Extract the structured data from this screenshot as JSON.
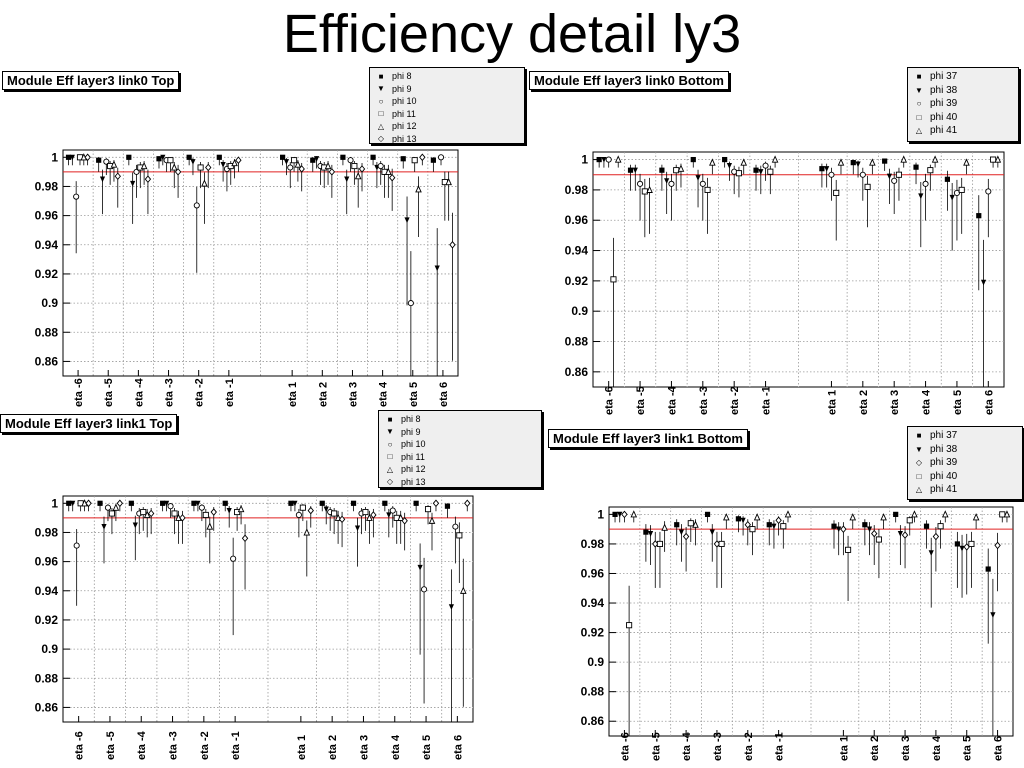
{
  "title": "Efficiency detail ly3",
  "colors": {
    "reference_line": "#e02020",
    "points": "#000000",
    "grid": "#9a9a9a",
    "legend_bg": "#efefef"
  },
  "chart_data": [
    {
      "type": "scatter",
      "title": "Module Eff layer3 link0 Top",
      "categories": [
        "eta -6",
        "eta -5",
        "eta -4",
        "eta -3",
        "eta -2",
        "eta -1",
        "eta 1",
        "eta 2",
        "eta 3",
        "eta 4",
        "eta 5",
        "eta 6"
      ],
      "ylim": [
        0.85,
        1.005
      ],
      "yticks": [
        "1",
        "0.98",
        "0.96",
        "0.94",
        "0.92",
        "0.9",
        "0.88",
        "0.86"
      ],
      "reference_line": 0.99,
      "grid": true,
      "legend_position": "top-center",
      "series": [
        {
          "name": "phi 8",
          "marker": "square-filled",
          "values": [
            1.0,
            0.998,
            1.0,
            0.999,
            1.0,
            1.0,
            1.0,
            0.998,
            1.0,
            1.0,
            0.999,
            0.998
          ]
        },
        {
          "name": "phi 9",
          "marker": "triangle-filled",
          "values": [
            1.0,
            0.985,
            0.982,
            1.0,
            0.997,
            0.995,
            0.997,
            0.999,
            0.985,
            0.993,
            0.957,
            0.924
          ]
        },
        {
          "name": "phi 10",
          "marker": "circle",
          "values": [
            0.973,
            0.997,
            0.99,
            0.998,
            0.967,
            0.992,
            0.993,
            0.994,
            0.998,
            0.994,
            0.9,
            1.0
          ]
        },
        {
          "name": "phi 11",
          "marker": "square",
          "values": [
            1.0,
            0.994,
            0.993,
            0.998,
            0.993,
            0.994,
            0.998,
            0.993,
            0.994,
            0.99,
            0.998,
            0.983
          ]
        },
        {
          "name": "phi 12",
          "marker": "triangle",
          "values": [
            1.0,
            0.995,
            0.994,
            0.993,
            0.982,
            0.996,
            0.995,
            0.994,
            0.987,
            0.99,
            0.978,
            0.983
          ]
        },
        {
          "name": "phi 13",
          "marker": "diamond",
          "values": [
            1.0,
            0.987,
            0.985,
            0.99,
            0.993,
            0.998,
            0.992,
            0.99,
            0.992,
            0.986,
            1.0,
            0.94
          ]
        }
      ]
    },
    {
      "type": "scatter",
      "title": "Module Eff layer3 link0 Bottom",
      "categories": [
        "eta -6",
        "eta -5",
        "eta -4",
        "eta -3",
        "eta -2",
        "eta -1",
        "eta 1",
        "eta 2",
        "eta 3",
        "eta 4",
        "eta 5",
        "eta 6"
      ],
      "ylim": [
        0.85,
        1.005
      ],
      "yticks": [
        "1",
        "0.98",
        "0.96",
        "0.94",
        "0.92",
        "0.9",
        "0.88",
        "0.86"
      ],
      "reference_line": 0.99,
      "grid": true,
      "legend_position": "top-right",
      "series": [
        {
          "name": "phi 37",
          "marker": "square-filled",
          "values": [
            1.0,
            0.993,
            0.993,
            1.0,
            1.0,
            0.993,
            0.994,
            0.998,
            0.999,
            0.995,
            0.987,
            0.963
          ]
        },
        {
          "name": "phi 38",
          "marker": "triangle-filled",
          "values": [
            1.0,
            0.993,
            0.986,
            0.988,
            0.996,
            0.992,
            0.994,
            0.997,
            0.989,
            0.976,
            0.975,
            0.919
          ]
        },
        {
          "name": "phi 39",
          "marker": "circle",
          "values": [
            1.0,
            0.984,
            0.984,
            0.984,
            0.992,
            0.996,
            0.99,
            0.99,
            0.986,
            0.984,
            0.978,
            0.979
          ]
        },
        {
          "name": "phi 40",
          "marker": "square",
          "values": [
            0.921,
            0.979,
            0.993,
            0.98,
            0.991,
            0.992,
            0.978,
            0.982,
            0.99,
            0.993,
            0.98,
            1.0
          ]
        },
        {
          "name": "phi 41",
          "marker": "triangle",
          "values": [
            1.0,
            0.98,
            0.994,
            0.998,
            0.998,
            1.0,
            0.998,
            0.998,
            1.0,
            1.0,
            0.998,
            1.0
          ]
        }
      ]
    },
    {
      "type": "scatter",
      "title": "Module Eff layer3 link1 Top",
      "categories": [
        "eta -6",
        "eta -5",
        "eta -4",
        "eta -3",
        "eta -2",
        "eta -1",
        "eta 1",
        "eta 2",
        "eta 3",
        "eta 4",
        "eta 5",
        "eta 6"
      ],
      "ylim": [
        0.85,
        1.005
      ],
      "yticks": [
        "1",
        "0.98",
        "0.96",
        "0.94",
        "0.92",
        "0.9",
        "0.88",
        "0.86"
      ],
      "reference_line": 0.99,
      "grid": true,
      "legend_position": "top-center",
      "series": [
        {
          "name": "phi 8",
          "marker": "square-filled",
          "values": [
            1.0,
            1.0,
            1.0,
            1.0,
            1.0,
            1.0,
            1.0,
            1.0,
            1.0,
            1.0,
            1.0,
            0.998
          ]
        },
        {
          "name": "phi 9",
          "marker": "triangle-filled",
          "values": [
            1.0,
            0.984,
            0.985,
            1.0,
            1.0,
            0.995,
            1.0,
            0.996,
            0.983,
            0.992,
            0.956,
            0.929
          ]
        },
        {
          "name": "phi 10",
          "marker": "circle",
          "values": [
            0.971,
            0.997,
            0.993,
            0.998,
            0.997,
            0.962,
            0.992,
            0.994,
            0.993,
            0.995,
            0.941,
            0.984
          ]
        },
        {
          "name": "phi 11",
          "marker": "square",
          "values": [
            1.0,
            0.993,
            0.994,
            0.993,
            0.992,
            0.994,
            0.997,
            0.993,
            0.994,
            0.99,
            0.996,
            0.978
          ]
        },
        {
          "name": "phi 12",
          "marker": "triangle",
          "values": [
            1.0,
            0.997,
            0.992,
            0.99,
            0.984,
            0.996,
            0.98,
            0.99,
            0.99,
            0.99,
            0.988,
            0.94
          ]
        },
        {
          "name": "phi 13",
          "marker": "diamond",
          "values": [
            1.0,
            1.0,
            0.993,
            0.99,
            0.994,
            0.976,
            0.995,
            0.989,
            0.992,
            0.988,
            1.0,
            1.0
          ]
        }
      ]
    },
    {
      "type": "scatter",
      "title": "Module Eff layer3 link1 Bottom",
      "categories": [
        "eta -6",
        "eta -5",
        "eta -4",
        "eta -3",
        "eta -2",
        "eta -1",
        "eta 1",
        "eta 2",
        "eta 3",
        "eta 4",
        "eta 5",
        "eta 6"
      ],
      "ylim": [
        0.85,
        1.005
      ],
      "yticks": [
        "1",
        "0.98",
        "0.96",
        "0.94",
        "0.92",
        "0.9",
        "0.88",
        "0.86"
      ],
      "reference_line": 0.99,
      "grid": true,
      "legend_position": "top-right",
      "series": [
        {
          "name": "phi 37",
          "marker": "square-filled",
          "values": [
            1.0,
            0.988,
            0.993,
            1.0,
            0.997,
            0.993,
            0.992,
            0.993,
            1.0,
            0.992,
            0.98,
            0.963
          ]
        },
        {
          "name": "phi 38",
          "marker": "triangle-filled",
          "values": [
            1.0,
            0.987,
            0.988,
            0.988,
            0.996,
            0.992,
            0.99,
            0.99,
            0.987,
            0.974,
            0.977,
            0.932
          ]
        },
        {
          "name": "phi 39",
          "marker": "diamond",
          "values": [
            1.0,
            0.98,
            0.985,
            0.98,
            0.993,
            0.996,
            0.99,
            0.987,
            0.986,
            0.985,
            0.978,
            0.979
          ]
        },
        {
          "name": "phi 40",
          "marker": "square",
          "values": [
            0.925,
            0.98,
            0.994,
            0.98,
            0.99,
            0.992,
            0.976,
            0.983,
            0.996,
            0.992,
            0.98,
            1.0
          ]
        },
        {
          "name": "phi 41",
          "marker": "triangle",
          "values": [
            1.0,
            0.991,
            0.993,
            0.998,
            0.998,
            1.0,
            0.998,
            0.998,
            1.0,
            1.0,
            0.998,
            1.0
          ]
        }
      ]
    }
  ]
}
